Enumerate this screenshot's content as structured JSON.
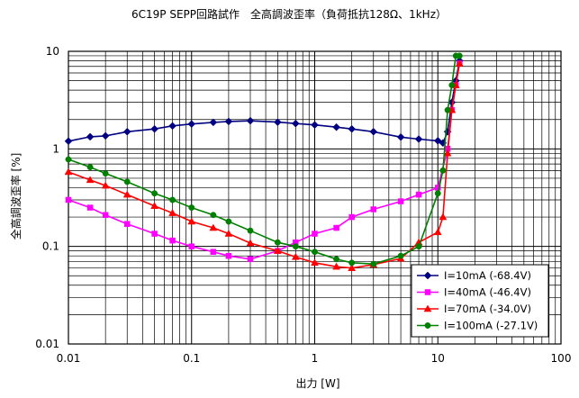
{
  "chart_data": {
    "type": "line",
    "title": "6C19P SEPP回路試作　全高調波歪率（負荷抵抗128Ω、1kHz）",
    "xlabel": "出力 [W]",
    "ylabel": "全高調波歪率 [%]",
    "x_scale": "log",
    "y_scale": "log",
    "xlim": [
      0.01,
      100
    ],
    "ylim": [
      0.01,
      10
    ],
    "x_ticks": [
      "0.01",
      "0.1",
      "1",
      "10",
      "100"
    ],
    "y_ticks": [
      "0.01",
      "0.1",
      "1",
      "10"
    ],
    "grid": true,
    "legend_position": "bottom-right",
    "series": [
      {
        "name": "I=10mA (-68.4V)",
        "color": "#000080",
        "marker": "diamond",
        "x": [
          0.01,
          0.015,
          0.02,
          0.03,
          0.05,
          0.07,
          0.1,
          0.15,
          0.2,
          0.3,
          0.5,
          0.7,
          1.0,
          1.5,
          2.0,
          3.0,
          5.0,
          7.0,
          10.0,
          11.0,
          12.0,
          13.0,
          14.0,
          15.0
        ],
        "values": [
          1.2,
          1.33,
          1.36,
          1.5,
          1.6,
          1.72,
          1.8,
          1.87,
          1.91,
          1.94,
          1.88,
          1.82,
          1.76,
          1.67,
          1.6,
          1.5,
          1.32,
          1.26,
          1.21,
          1.15,
          1.5,
          3.0,
          5.0,
          8.0
        ]
      },
      {
        "name": "I=40mA (-46.4V)",
        "color": "#FF00FF",
        "marker": "square",
        "x": [
          0.01,
          0.015,
          0.02,
          0.03,
          0.05,
          0.07,
          0.1,
          0.15,
          0.2,
          0.3,
          0.5,
          0.7,
          1.0,
          1.5,
          2.0,
          3.0,
          5.0,
          7.0,
          10.0,
          12.0,
          13.0,
          14.0,
          15.0
        ],
        "values": [
          0.3,
          0.25,
          0.21,
          0.17,
          0.135,
          0.115,
          0.1,
          0.088,
          0.08,
          0.074,
          0.09,
          0.11,
          0.135,
          0.155,
          0.2,
          0.24,
          0.29,
          0.34,
          0.4,
          1.0,
          2.5,
          4.5,
          7.5
        ]
      },
      {
        "name": "I=70mA (-34.0V)",
        "color": "#FF0000",
        "marker": "triangle",
        "x": [
          0.01,
          0.015,
          0.02,
          0.03,
          0.05,
          0.07,
          0.1,
          0.15,
          0.2,
          0.3,
          0.5,
          0.7,
          1.0,
          1.5,
          2.0,
          3.0,
          5.0,
          7.0,
          10.0,
          11.0,
          12.0,
          13.0,
          14.0,
          15.0
        ],
        "values": [
          0.58,
          0.48,
          0.42,
          0.34,
          0.26,
          0.22,
          0.18,
          0.155,
          0.135,
          0.108,
          0.09,
          0.078,
          0.068,
          0.062,
          0.06,
          0.065,
          0.075,
          0.11,
          0.14,
          0.2,
          0.9,
          2.5,
          4.5,
          7.5
        ]
      },
      {
        "name": "I=100mA (-27.1V)",
        "color": "#008000",
        "marker": "circle",
        "x": [
          0.01,
          0.015,
          0.02,
          0.03,
          0.05,
          0.07,
          0.1,
          0.15,
          0.2,
          0.3,
          0.5,
          0.7,
          1.0,
          1.5,
          2.0,
          3.0,
          5.0,
          7.0,
          10.0,
          11.0,
          12.0,
          13.0,
          14.0,
          15.0
        ],
        "values": [
          0.78,
          0.65,
          0.56,
          0.46,
          0.35,
          0.3,
          0.25,
          0.21,
          0.18,
          0.145,
          0.11,
          0.1,
          0.088,
          0.074,
          0.068,
          0.066,
          0.08,
          0.1,
          0.35,
          0.6,
          2.5,
          4.5,
          9.0,
          9.0
        ]
      }
    ]
  }
}
